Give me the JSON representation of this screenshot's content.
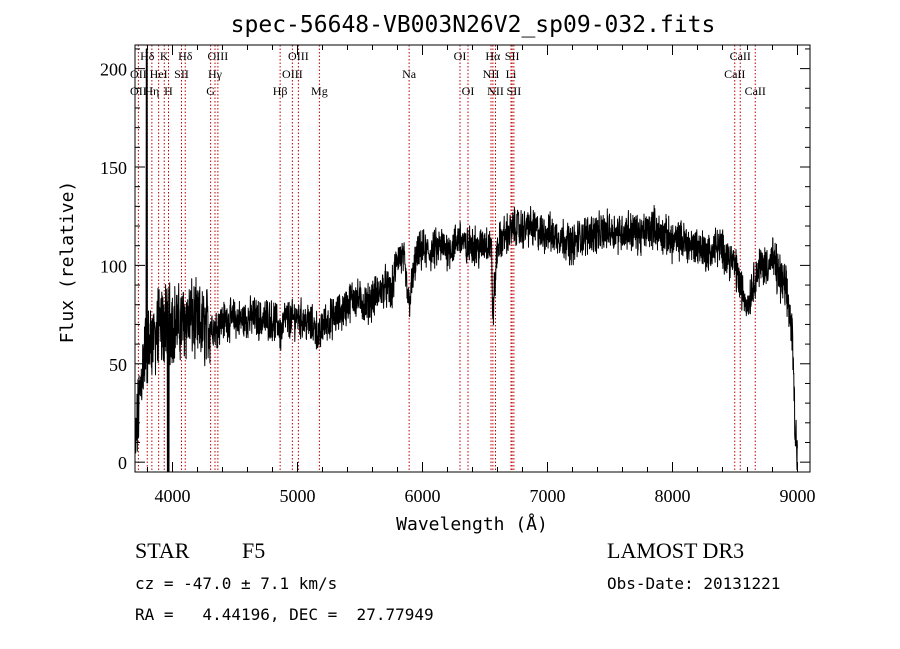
{
  "chart_data": {
    "type": "line",
    "title": "spec-56648-VB003N26V2_sp09-032.fits",
    "xlabel": "Wavelength (Å)",
    "ylabel": "Flux (relative)",
    "xlim": [
      3700,
      9100
    ],
    "ylim": [
      -5,
      212
    ],
    "xticks": [
      4000,
      5000,
      6000,
      7000,
      8000,
      9000
    ],
    "yticks": [
      0,
      50,
      100,
      150,
      200
    ],
    "grid": false,
    "spectrum_anchors": {
      "x": [
        3700,
        3720,
        3740,
        3760,
        3780,
        3800,
        3830,
        3860,
        3900,
        3950,
        4000,
        4050,
        4100,
        4150,
        4200,
        4250,
        4300,
        4340,
        4400,
        4450,
        4500,
        4550,
        4600,
        4650,
        4700,
        4750,
        4800,
        4850,
        4861,
        4900,
        4950,
        5000,
        5050,
        5100,
        5150,
        5175,
        5200,
        5250,
        5300,
        5350,
        5400,
        5450,
        5500,
        5550,
        5600,
        5650,
        5700,
        5750,
        5800,
        5850,
        5890,
        5950,
        6000,
        6050,
        6100,
        6150,
        6200,
        6250,
        6300,
        6350,
        6400,
        6450,
        6500,
        6550,
        6563,
        6600,
        6650,
        6700,
        6750,
        6800,
        6850,
        6900,
        6950,
        7000,
        7050,
        7100,
        7150,
        7200,
        7250,
        7300,
        7350,
        7400,
        7450,
        7500,
        7550,
        7600,
        7650,
        7700,
        7750,
        7800,
        7850,
        7900,
        7950,
        8000,
        8050,
        8100,
        8150,
        8200,
        8250,
        8300,
        8350,
        8400,
        8450,
        8500,
        8550,
        8600,
        8650,
        8700,
        8750,
        8800,
        8850,
        8900,
        8930,
        8960,
        8980,
        9000
      ],
      "y": [
        5,
        20,
        35,
        50,
        55,
        60,
        62,
        65,
        68,
        70,
        72,
        70,
        72,
        73,
        70,
        68,
        70,
        68,
        72,
        72,
        73,
        72,
        73,
        74,
        72,
        73,
        72,
        70,
        65,
        73,
        72,
        74,
        72,
        70,
        68,
        62,
        70,
        72,
        74,
        76,
        80,
        84,
        82,
        80,
        83,
        86,
        90,
        85,
        105,
        103,
        80,
        104,
        108,
        106,
        108,
        110,
        108,
        110,
        115,
        108,
        112,
        108,
        112,
        110,
        75,
        110,
        115,
        117,
        120,
        118,
        120,
        118,
        116,
        117,
        115,
        115,
        113,
        110,
        114,
        115,
        117,
        116,
        117,
        118,
        117,
        117,
        118,
        117,
        115,
        118,
        120,
        116,
        115,
        112,
        113,
        112,
        110,
        110,
        108,
        106,
        110,
        108,
        104,
        100,
        88,
        80,
        92,
        100,
        100,
        103,
        95,
        88,
        80,
        62,
        20,
        5
      ],
      "noise_amplitude": 8
    },
    "line_labels": [
      {
        "label": "Hδ",
        "x": 3798,
        "row": 1
      },
      {
        "label": "K",
        "x": 3934,
        "row": 1
      },
      {
        "label": "Hδ",
        "x": 4102,
        "row": 1
      },
      {
        "label": "OIII",
        "x": 4363,
        "row": 1
      },
      {
        "label": "OIII",
        "x": 5007,
        "row": 1
      },
      {
        "label": "OI",
        "x": 6300,
        "row": 1
      },
      {
        "label": "Hα",
        "x": 6563,
        "row": 1
      },
      {
        "label": "SII",
        "x": 6717,
        "row": 1
      },
      {
        "label": "CaII",
        "x": 8542,
        "row": 1
      },
      {
        "label": "OII",
        "x": 3727,
        "row": 2
      },
      {
        "label": "HeI",
        "x": 3889,
        "row": 2
      },
      {
        "label": "SII",
        "x": 4072,
        "row": 2
      },
      {
        "label": "Hγ",
        "x": 4340,
        "row": 2
      },
      {
        "label": "OIII",
        "x": 4959,
        "row": 2
      },
      {
        "label": "Na",
        "x": 5893,
        "row": 2
      },
      {
        "label": "NII",
        "x": 6548,
        "row": 2
      },
      {
        "label": "Li",
        "x": 6708,
        "row": 2
      },
      {
        "label": "CaII",
        "x": 8498,
        "row": 2
      },
      {
        "label": "OII",
        "x": 3727,
        "row": 3
      },
      {
        "label": "Hη",
        "x": 3835,
        "row": 3
      },
      {
        "label": "H",
        "x": 3968,
        "row": 3
      },
      {
        "label": "G",
        "x": 4305,
        "row": 3
      },
      {
        "label": "Hβ",
        "x": 4861,
        "row": 3
      },
      {
        "label": "Mg",
        "x": 5175,
        "row": 3
      },
      {
        "label": "OI",
        "x": 6364,
        "row": 3
      },
      {
        "label": "NII",
        "x": 6584,
        "row": 3
      },
      {
        "label": "SII",
        "x": 6731,
        "row": 3
      },
      {
        "label": "CaII",
        "x": 8662,
        "row": 3
      }
    ],
    "line_markers": [
      3727,
      3798,
      3835,
      3889,
      3934,
      3968,
      4072,
      4102,
      4305,
      4340,
      4363,
      4861,
      4959,
      5007,
      5175,
      5893,
      6300,
      6364,
      6548,
      6563,
      6584,
      6708,
      6717,
      6731,
      8498,
      8542,
      8662
    ]
  },
  "info": {
    "object_class": "STAR",
    "subclass": "F5",
    "survey": "LAMOST DR3",
    "redshift": "cz = -47.0 ± 7.1 km/s",
    "obs_date": "Obs-Date: 20131221",
    "coords": "RA =   4.44196, DEC =  27.77949"
  }
}
